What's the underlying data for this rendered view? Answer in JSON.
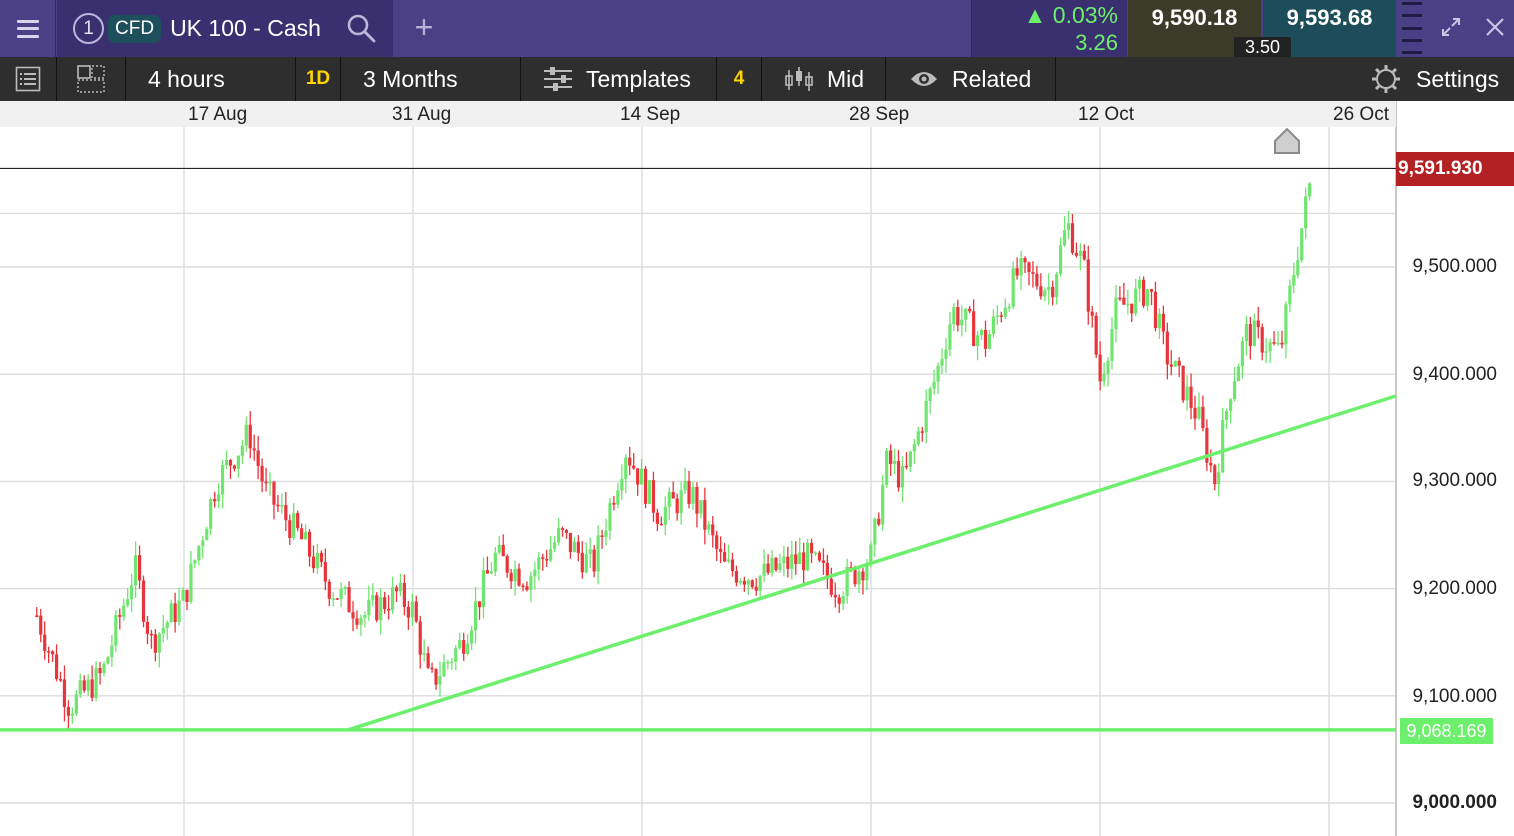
{
  "header": {
    "tab_number": "1",
    "instrument_type": "CFD",
    "instrument_name": "UK 100 - Cash",
    "add_tab_label": "+",
    "change_percent": "▲ 0.03%",
    "change_abs": "3.26",
    "sell_price": "9,590.18",
    "buy_price": "9,593.68",
    "spread": "3.50",
    "icons": [
      "menu-icon",
      "search-icon",
      "plus-icon",
      "drag-handle-icon",
      "expand-icon",
      "close-icon"
    ]
  },
  "toolbar": {
    "interval": "4 hours",
    "quick_period": "1D",
    "period": "3 Months",
    "templates": "Templates",
    "indicator_count": "4",
    "price_type": "Mid",
    "related": "Related",
    "settings": "Settings",
    "icons": [
      "list-icon",
      "layout-icon",
      "templates-sliders-icon",
      "candles-icon",
      "eye-icon",
      "gear-icon"
    ]
  },
  "chart": {
    "current_price_label": "9,591.930",
    "support_line_label": "9,068.169",
    "colors": {
      "up": "#6fe46f",
      "down": "#e8353b",
      "trendline": "#6cf06c",
      "current_tag": "#b32124"
    }
  },
  "chart_data": {
    "type": "candlestick",
    "x_tick_labels": [
      "17 Aug",
      "31 Aug",
      "14 Sep",
      "28 Sep",
      "12 Oct",
      "26 Oct"
    ],
    "y_tick_labels": [
      "9,500.000",
      "9,400.000",
      "9,300.000",
      "9,200.000",
      "9,100.000",
      "9,000.000"
    ],
    "y_ticks": [
      9500,
      9400,
      9300,
      9200,
      9100,
      9000
    ],
    "ylim": [
      8970,
      9660
    ],
    "grid": true,
    "current_price": 9591.93,
    "horizontal_line": 9068.169,
    "trendline": {
      "from": {
        "date": "27 Aug",
        "price": 9068
      },
      "to": {
        "date": "25 Oct",
        "price": 9355
      }
    },
    "close_path": [
      [
        "08 Aug",
        9175
      ],
      [
        "10 Aug",
        9090
      ],
      [
        "12 Aug",
        9120
      ],
      [
        "14 Aug",
        9220
      ],
      [
        "15 Aug",
        9150
      ],
      [
        "17 Aug",
        9190
      ],
      [
        "19 Aug",
        9300
      ],
      [
        "21 Aug",
        9345
      ],
      [
        "22 Aug",
        9290
      ],
      [
        "24 Aug",
        9250
      ],
      [
        "26 Aug",
        9200
      ],
      [
        "28 Aug",
        9175
      ],
      [
        "30 Aug",
        9195
      ],
      [
        "31 Aug",
        9180
      ],
      [
        "01 Sep",
        9110
      ],
      [
        "03 Sep",
        9150
      ],
      [
        "05 Sep",
        9230
      ],
      [
        "07 Sep",
        9210
      ],
      [
        "09 Sep",
        9250
      ],
      [
        "11 Sep",
        9220
      ],
      [
        "13 Sep",
        9330
      ],
      [
        "15 Sep",
        9270
      ],
      [
        "17 Sep",
        9290
      ],
      [
        "19 Sep",
        9220
      ],
      [
        "21 Sep",
        9210
      ],
      [
        "24 Sep",
        9230
      ],
      [
        "26 Sep",
        9200
      ],
      [
        "28 Sep",
        9230
      ],
      [
        "29 Sep",
        9320
      ],
      [
        "30 Sep",
        9300
      ],
      [
        "02 Oct",
        9400
      ],
      [
        "03 Oct",
        9460
      ],
      [
        "05 Oct",
        9430
      ],
      [
        "07 Oct",
        9495
      ],
      [
        "09 Oct",
        9480
      ],
      [
        "10 Oct",
        9540
      ],
      [
        "11 Oct",
        9500
      ],
      [
        "12 Oct",
        9395
      ],
      [
        "13 Oct",
        9460
      ],
      [
        "15 Oct",
        9480
      ],
      [
        "16 Oct",
        9420
      ],
      [
        "18 Oct",
        9360
      ],
      [
        "19 Oct",
        9300
      ],
      [
        "20 Oct",
        9390
      ],
      [
        "21 Oct",
        9440
      ],
      [
        "23 Oct",
        9420
      ],
      [
        "24 Oct",
        9510
      ],
      [
        "25 Oct",
        9590
      ]
    ]
  }
}
